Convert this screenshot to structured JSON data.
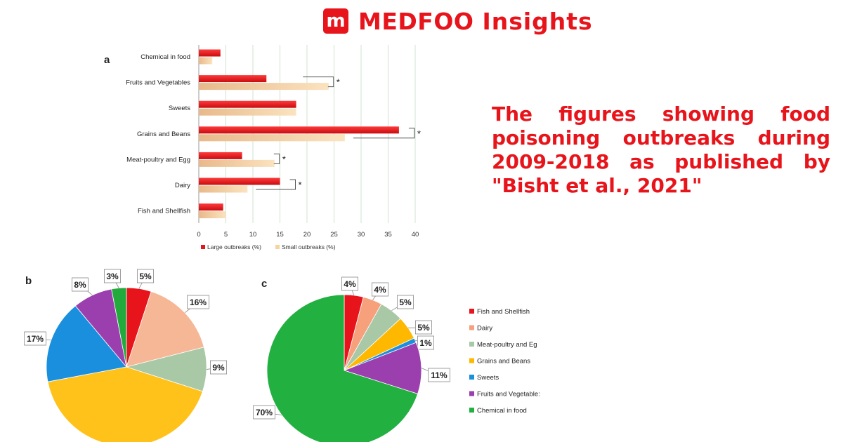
{
  "brand": {
    "logo_letter": "m",
    "name": "MEDFOO",
    "suffix": "Insights"
  },
  "caption": "The figures showing food poisoning outbreaks during 2009-2018 as published by \"Bisht et al., 2021\"",
  "colors": {
    "brand_red": "#e8141b",
    "large": "#e8141b",
    "small": "#f7d3a0"
  },
  "chart_data": [
    {
      "type": "bar",
      "panel": "a",
      "orientation": "horizontal",
      "categories": [
        "Chemical in food",
        "Fruits and Vegetables",
        "Sweets",
        "Grains and Beans",
        "Meat-poultry and Egg",
        "Dairy",
        "Fish and Shellfish"
      ],
      "series": [
        {
          "name": "Large outbreaks (%)",
          "color": "#e8141b",
          "values": [
            4,
            12.5,
            18,
            37,
            8,
            15,
            4.5
          ]
        },
        {
          "name": "Small outbreaks (%)",
          "color": "#f7d3a0",
          "values": [
            2.5,
            24,
            18,
            27,
            14,
            9,
            5
          ]
        }
      ],
      "xlim": [
        0,
        40
      ],
      "xticks": [
        "0",
        "5",
        "10",
        "15",
        "20",
        "25",
        "30",
        "35",
        "40"
      ],
      "grid": "vertical",
      "significance": [
        "Fruits and Vegetables",
        "Grains and Beans",
        "Meat-poultry and Egg",
        "Dairy"
      ],
      "significance_mark": "*",
      "legend": "bottom"
    },
    {
      "type": "pie",
      "panel": "b",
      "slices": [
        {
          "label": "Fish and Shellfish",
          "value": 5,
          "text": "5%",
          "color": "#e8141b"
        },
        {
          "label": "Dairy",
          "value": 16,
          "text": "16%",
          "color": "#f6b796"
        },
        {
          "label": "Meat-poultry and Egg",
          "value": 9,
          "text": "9%",
          "color": "#a8c8a6"
        },
        {
          "label": "Grains and Beans",
          "value": 42,
          "text": "",
          "color": "#ffc21a"
        },
        {
          "label": "Sweets",
          "value": 17,
          "text": "17%",
          "color": "#1a8fde"
        },
        {
          "label": "Fruits and Vegetables",
          "value": 8,
          "text": "8%",
          "color": "#9b3fae"
        },
        {
          "label": "Chemical in food",
          "value": 3,
          "text": "3%",
          "color": "#22aa3c"
        }
      ]
    },
    {
      "type": "pie",
      "panel": "c",
      "slices": [
        {
          "label": "Fish and Shellfish",
          "value": 4,
          "text": "4%",
          "color": "#e8141b"
        },
        {
          "label": "Dairy",
          "value": 4,
          "text": "4%",
          "color": "#f6a07c"
        },
        {
          "label": "Meat-poultry and Egg",
          "value": 5,
          "text": "5%",
          "color": "#a8c8a6"
        },
        {
          "label": "Grains and Beans",
          "value": 5,
          "text": "5%",
          "color": "#ffb800"
        },
        {
          "label": "Sweets",
          "value": 1,
          "text": "1%",
          "color": "#1a8fde"
        },
        {
          "label": "Fruits and Vegetables",
          "value": 11,
          "text": "11%",
          "color": "#9b3fae"
        },
        {
          "label": "Chemical in food",
          "value": 70,
          "text": "70%",
          "color": "#22b040"
        }
      ],
      "legend_labels": [
        "Fish and Shellfish",
        "Dairy",
        "Meat-poultry and Eg",
        "Grains and Beans",
        "Sweets",
        "Fruits and Vegetable:",
        "Chemical in food"
      ],
      "legend": "right"
    }
  ]
}
